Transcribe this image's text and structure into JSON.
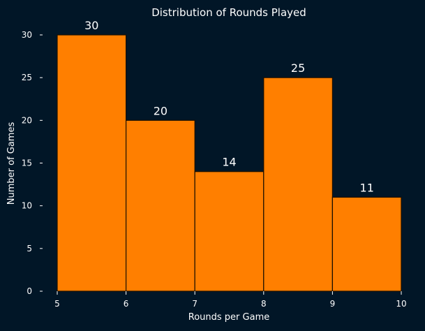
{
  "chart_data": {
    "type": "bar",
    "title": "Distribution of Rounds Played",
    "xlabel": "Rounds per Game",
    "ylabel": "Number of Games",
    "bins": [
      {
        "start": 5,
        "end": 6,
        "value": 30
      },
      {
        "start": 6,
        "end": 7,
        "value": 20
      },
      {
        "start": 7,
        "end": 8,
        "value": 14
      },
      {
        "start": 8,
        "end": 9,
        "value": 25
      },
      {
        "start": 9,
        "end": 10,
        "value": 11
      }
    ],
    "xlim": [
      5,
      10
    ],
    "ylim": [
      0,
      30
    ],
    "x_ticks": [
      "5",
      "6",
      "7",
      "8",
      "9",
      "10"
    ],
    "y_ticks": [
      "0",
      "5",
      "10",
      "15",
      "20",
      "25",
      "30"
    ],
    "grid": false,
    "colors": {
      "background": "#011627",
      "bar_fill": "#ff7f00",
      "bar_edge": "#1a0f00",
      "text": "#ffffff"
    }
  }
}
